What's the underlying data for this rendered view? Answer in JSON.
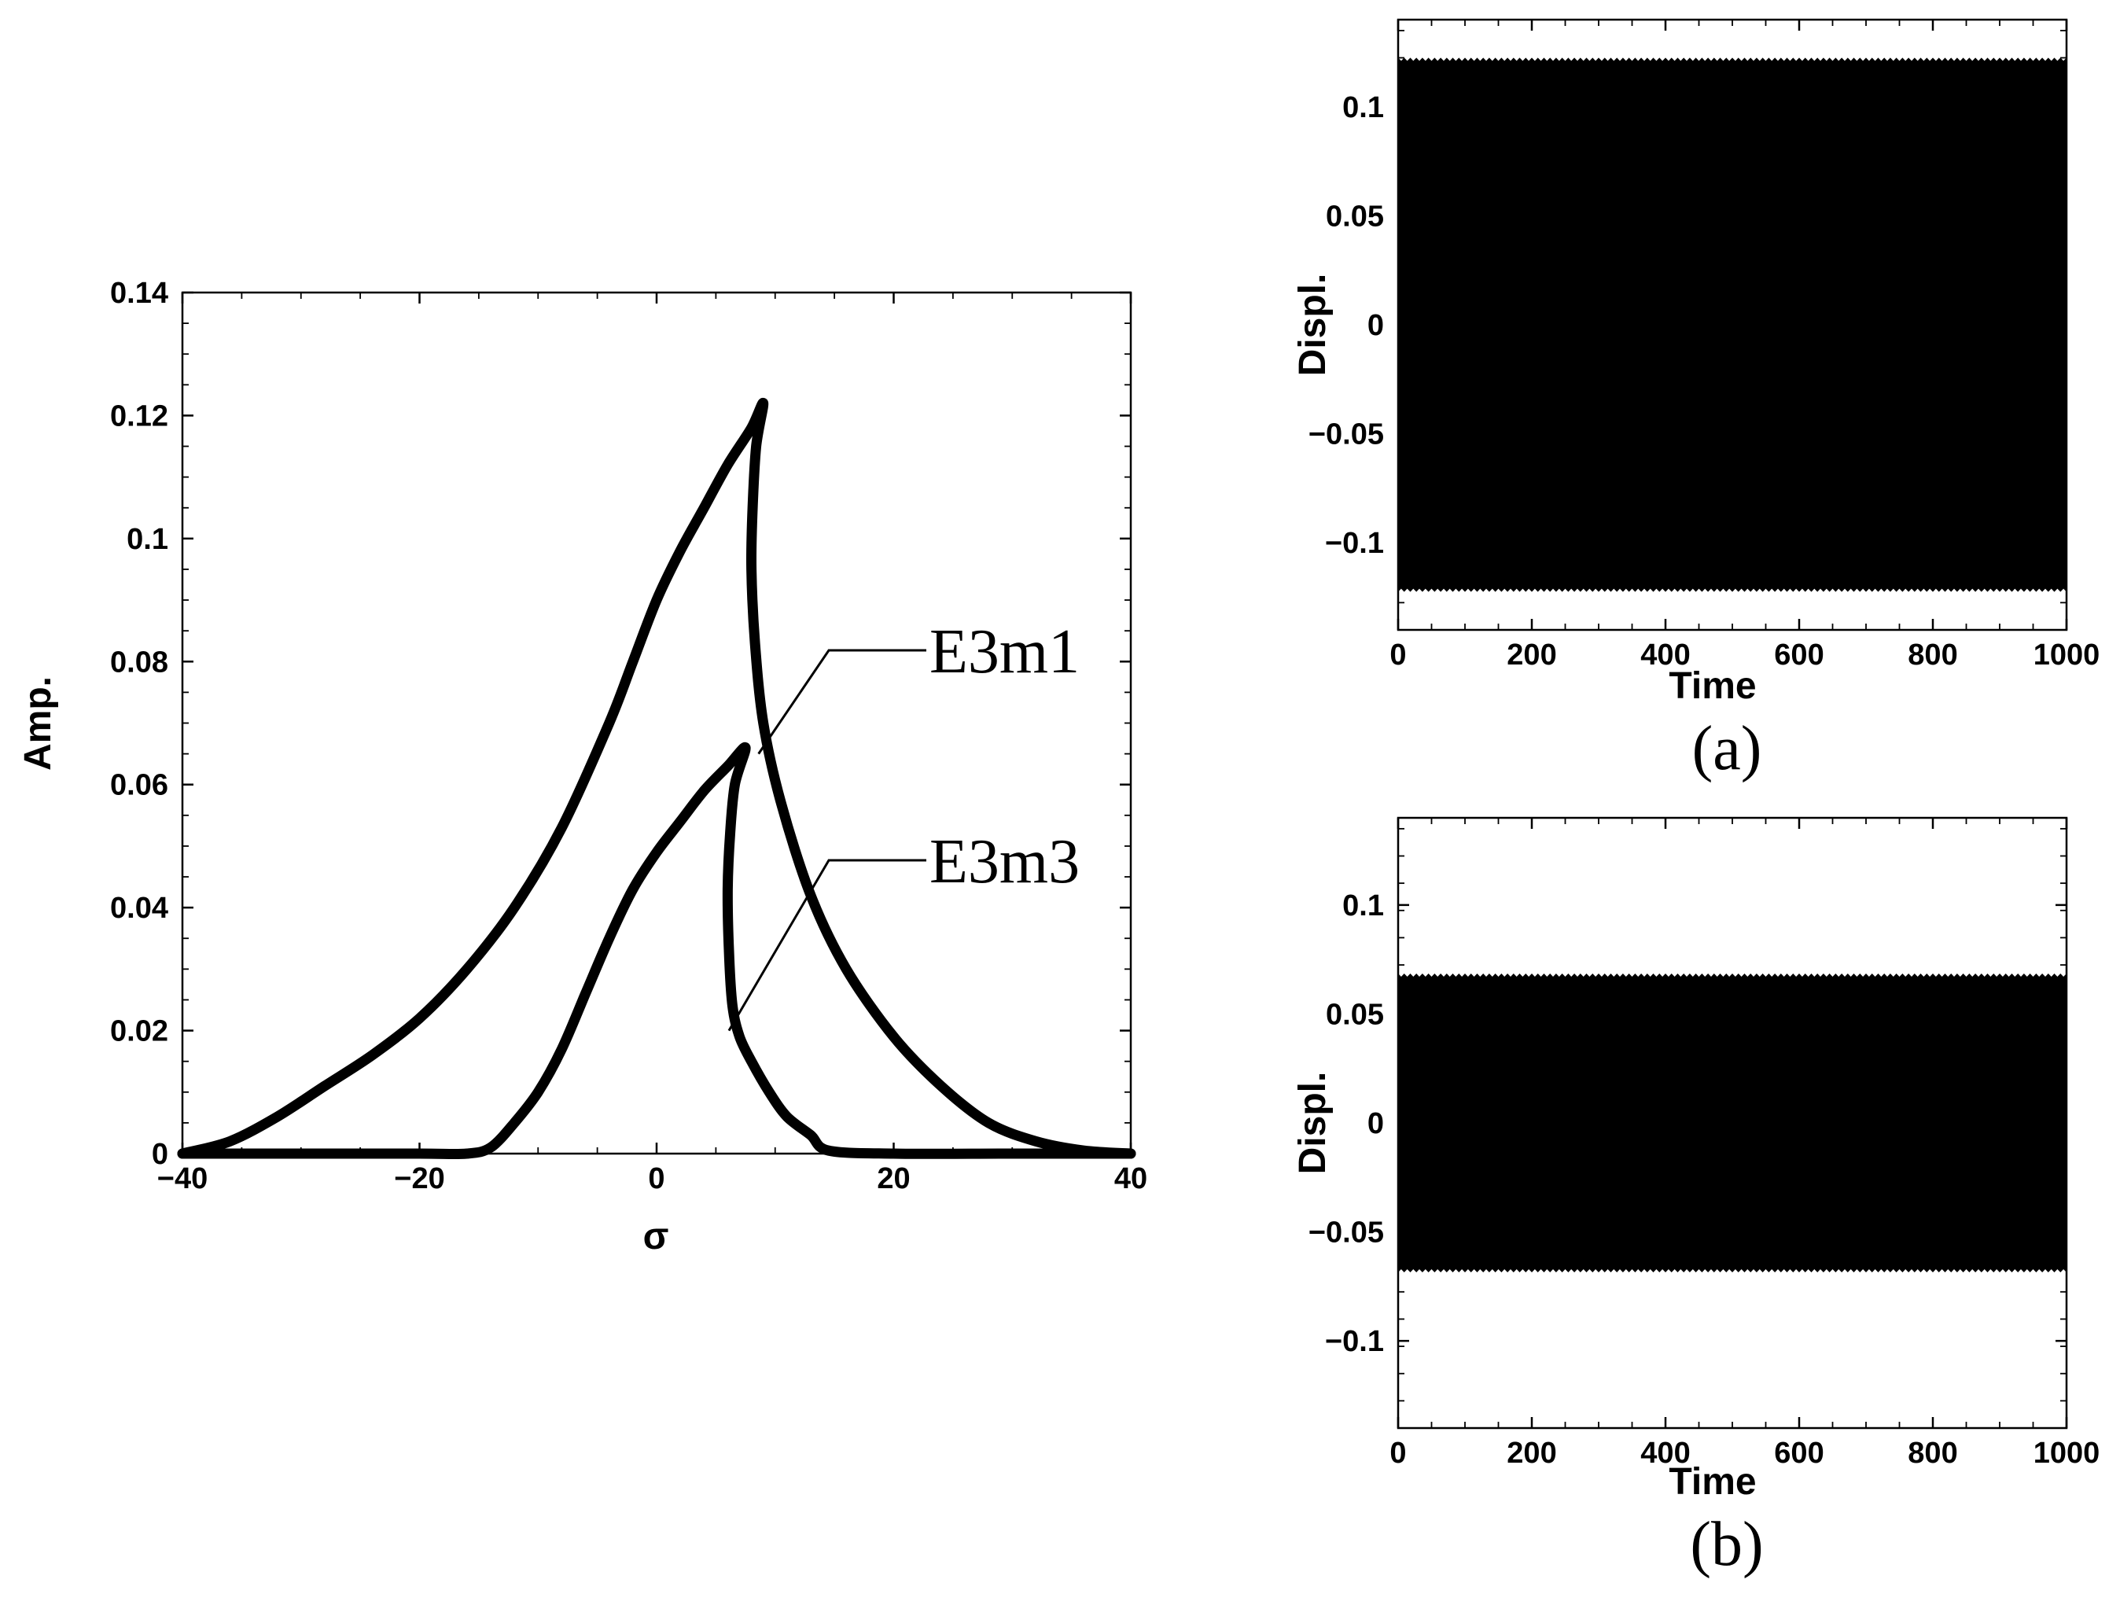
{
  "chart_data": [
    {
      "id": "main",
      "type": "line",
      "xlabel": "σ",
      "ylabel": "Amp.",
      "xlim": [
        -40,
        40
      ],
      "ylim": [
        0,
        0.14
      ],
      "xticks": [
        -40,
        -20,
        0,
        20,
        40
      ],
      "xtick_labels": [
        "−40",
        "−20",
        "0",
        "20",
        "40"
      ],
      "yticks": [
        0,
        0.02,
        0.04,
        0.06,
        0.08,
        0.1,
        0.12,
        0.14
      ],
      "ytick_labels": [
        "0",
        "0.02",
        "0.04",
        "0.06",
        "0.08",
        "0.1",
        "0.12",
        "0.14"
      ],
      "grid": false,
      "series": [
        {
          "name": "E3m1",
          "x": [
            -40,
            -36,
            -32,
            -28,
            -24,
            -20,
            -16,
            -12,
            -8,
            -4,
            -2,
            0,
            2,
            4,
            6,
            8,
            9,
            8.4,
            8.1,
            8.0,
            8.3,
            9.0,
            10.5,
            13,
            16,
            20,
            24,
            28,
            32,
            36,
            40
          ],
          "y": [
            0,
            0.002,
            0.006,
            0.011,
            0.016,
            0.022,
            0.03,
            0.04,
            0.053,
            0.07,
            0.08,
            0.09,
            0.098,
            0.105,
            0.112,
            0.118,
            0.122,
            0.115,
            0.105,
            0.095,
            0.083,
            0.07,
            0.057,
            0.042,
            0.03,
            0.019,
            0.011,
            0.005,
            0.002,
            0.0005,
            0
          ]
        },
        {
          "name": "E3m3",
          "x": [
            -40,
            -30,
            -20,
            -16,
            -14,
            -12,
            -10,
            -8,
            -6,
            -4,
            -2,
            0,
            2,
            4,
            6,
            7.5,
            6.6,
            6.2,
            6.0,
            6.1,
            6.4,
            7.0,
            8.0,
            9.5,
            11,
            13,
            14.5,
            20,
            30,
            40
          ],
          "y": [
            0,
            0,
            0,
            0,
            0.001,
            0.005,
            0.01,
            0.017,
            0.026,
            0.035,
            0.043,
            0.049,
            0.054,
            0.059,
            0.063,
            0.066,
            0.06,
            0.052,
            0.043,
            0.033,
            0.024,
            0.019,
            0.015,
            0.01,
            0.006,
            0.003,
            0.0005,
            0,
            0,
            0
          ]
        }
      ],
      "annotations": [
        {
          "text": "E3m1",
          "points_to": [
            8.6,
            0.065
          ]
        },
        {
          "text": "E3m3",
          "points_to": [
            6.1,
            0.02
          ]
        }
      ]
    },
    {
      "id": "a",
      "type": "line",
      "panel_label": "(a)",
      "xlabel": "Time",
      "ylabel": "Displ.",
      "xlim": [
        0,
        1000
      ],
      "ylim": [
        -0.14,
        0.14
      ],
      "xticks": [
        0,
        200,
        400,
        600,
        800,
        1000
      ],
      "xtick_labels": [
        "0",
        "200",
        "400",
        "600",
        "800",
        "1000"
      ],
      "yticks": [
        -0.1,
        -0.05,
        0,
        0.05,
        0.1
      ],
      "ytick_labels": [
        "−0.1",
        "−0.05",
        "0",
        "0.05",
        "0.1"
      ],
      "grid": false,
      "series": [
        {
          "x_range": [
            0,
            1000
          ],
          "envelope": [
            -0.122,
            0.122
          ]
        }
      ]
    },
    {
      "id": "b",
      "type": "line",
      "panel_label": "(b)",
      "xlabel": "Time",
      "ylabel": "Displ.",
      "xlim": [
        0,
        1000
      ],
      "ylim": [
        -0.14,
        0.14
      ],
      "xticks": [
        0,
        200,
        400,
        600,
        800,
        1000
      ],
      "xtick_labels": [
        "0",
        "200",
        "400",
        "600",
        "800",
        "1000"
      ],
      "yticks": [
        -0.1,
        -0.05,
        0,
        0.05,
        0.1
      ],
      "ytick_labels": [
        "−0.1",
        "−0.05",
        "0",
        "0.05",
        "0.1"
      ],
      "grid": false,
      "series": [
        {
          "x_range": [
            0,
            1000
          ],
          "envelope": [
            -0.068,
            0.068
          ]
        }
      ]
    }
  ]
}
